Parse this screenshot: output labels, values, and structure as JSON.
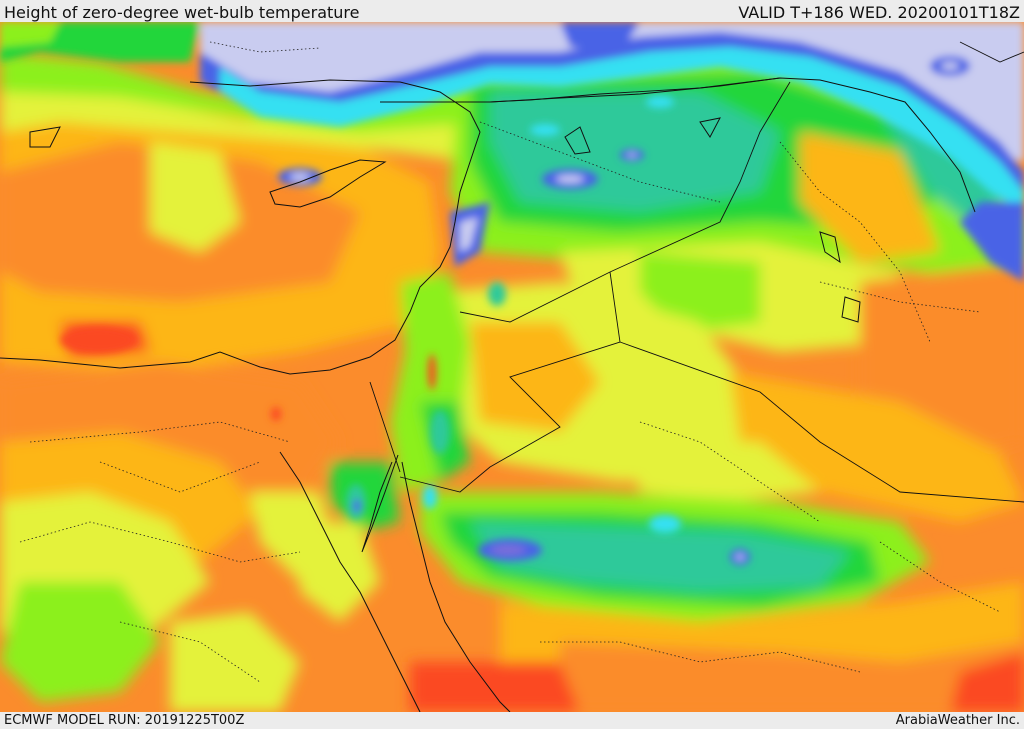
{
  "header": {
    "title": "Height of zero-degree wet-bulb temperature",
    "valid": "VALID T+186 WED. 20200101T18Z"
  },
  "footer": {
    "model_run": "ECMWF MODEL RUN: 20191225T00Z",
    "brand": "ArabiaWeather Inc."
  },
  "palette": {
    "periwinkle": "#c9ccf0",
    "blue": "#4a64e6",
    "violet": "#7b6fd8",
    "cyan": "#34e0f2",
    "teal": "#2ec99a",
    "green": "#23d63a",
    "lime": "#8cf01a",
    "yellow": "#e4f23a",
    "amber": "#fdb614",
    "orange": "#fb8c2c",
    "red": "#fb4a24"
  }
}
